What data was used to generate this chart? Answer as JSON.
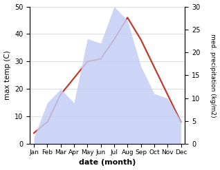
{
  "months": [
    "Jan",
    "Feb",
    "Mar",
    "Apr",
    "May",
    "Jun",
    "Jul",
    "Aug",
    "Sep",
    "Oct",
    "Nov",
    "Dec"
  ],
  "x": [
    0,
    1,
    2,
    3,
    4,
    5,
    6,
    7,
    8,
    9,
    10,
    11
  ],
  "max_temp": [
    4,
    8,
    18,
    24,
    30,
    31,
    38,
    46,
    38,
    28,
    18,
    8
  ],
  "precipitation": [
    1.5,
    9,
    12,
    9,
    23,
    22,
    30,
    27,
    17,
    11,
    10,
    5
  ],
  "temp_color": "#c0392b",
  "precip_fill_color": "#c5cef5",
  "temp_ylim": [
    0,
    50
  ],
  "precip_ylim": [
    0,
    30
  ],
  "temp_yticks": [
    0,
    10,
    20,
    30,
    40,
    50
  ],
  "precip_yticks": [
    0,
    5,
    10,
    15,
    20,
    25,
    30
  ],
  "xlabel": "date (month)",
  "ylabel_left": "max temp (C)",
  "ylabel_right": "med. precipitation (kg/m2)",
  "background_color": "#ffffff"
}
